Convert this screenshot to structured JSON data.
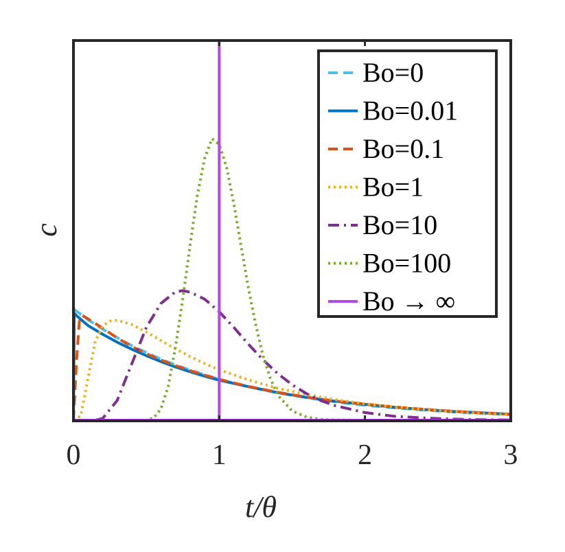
{
  "chart_data": {
    "type": "line",
    "xlabel": "t/θ",
    "ylabel": "c",
    "xlim": [
      0,
      3
    ],
    "ylim": [
      0,
      1
    ],
    "x_ticks": [
      "0",
      "1",
      "2",
      "3"
    ],
    "grid": false,
    "legend_position": "top-right",
    "series": [
      {
        "name": "Bo=0",
        "color": "#4DBEEE",
        "dash": "dashed",
        "x": [
          0,
          0.1,
          0.2,
          0.3,
          0.4,
          0.5,
          0.6,
          0.7,
          0.8,
          0.9,
          1.0,
          1.2,
          1.4,
          1.6,
          1.8,
          2.0,
          2.2,
          2.4,
          2.6,
          2.8,
          3.0
        ],
        "y": [
          0.395,
          0.357,
          0.324,
          0.293,
          0.265,
          0.24,
          0.217,
          0.196,
          0.178,
          0.161,
          0.145,
          0.119,
          0.097,
          0.08,
          0.065,
          0.053,
          0.044,
          0.036,
          0.029,
          0.024,
          0.02
        ]
      },
      {
        "name": "Bo=0.01",
        "color": "#0072BD",
        "dash": "solid",
        "x": [
          0,
          0.005,
          0.02,
          0.1,
          0.2,
          0.3,
          0.4,
          0.5,
          0.6,
          0.7,
          0.8,
          0.9,
          1.0,
          1.2,
          1.4,
          1.6,
          1.8,
          2.0,
          2.2,
          2.4,
          2.6,
          2.8,
          3.0
        ],
        "y": [
          0,
          0.38,
          0.372,
          0.336,
          0.305,
          0.277,
          0.252,
          0.229,
          0.208,
          0.189,
          0.172,
          0.156,
          0.142,
          0.119,
          0.098,
          0.081,
          0.067,
          0.056,
          0.046,
          0.038,
          0.031,
          0.026,
          0.021
        ]
      },
      {
        "name": "Bo=0.1",
        "color": "#D95319",
        "dash": "dashed",
        "x": [
          0,
          0.02,
          0.04,
          0.06,
          0.1,
          0.2,
          0.3,
          0.4,
          0.5,
          0.6,
          0.7,
          0.8,
          0.9,
          1.0,
          1.2,
          1.4,
          1.6,
          1.8,
          2.0,
          2.2,
          2.4,
          2.6,
          2.8,
          3.0
        ],
        "y": [
          0,
          0.2,
          0.35,
          0.372,
          0.36,
          0.327,
          0.292,
          0.262,
          0.236,
          0.214,
          0.194,
          0.176,
          0.16,
          0.145,
          0.12,
          0.099,
          0.082,
          0.068,
          0.057,
          0.047,
          0.039,
          0.032,
          0.026,
          0.021
        ]
      },
      {
        "name": "Bo=1",
        "color": "#EDB120",
        "dash": "dotted",
        "x": [
          0,
          0.05,
          0.1,
          0.15,
          0.2,
          0.25,
          0.3,
          0.4,
          0.5,
          0.6,
          0.7,
          0.8,
          0.9,
          1.0,
          1.2,
          1.4,
          1.6,
          1.8,
          2.0,
          2.2,
          2.4,
          2.6,
          2.8,
          3.0
        ],
        "y": [
          0,
          0.015,
          0.15,
          0.28,
          0.335,
          0.352,
          0.355,
          0.34,
          0.313,
          0.283,
          0.253,
          0.226,
          0.201,
          0.179,
          0.143,
          0.114,
          0.091,
          0.073,
          0.058,
          0.047,
          0.038,
          0.03,
          0.024,
          0.019
        ]
      },
      {
        "name": "Bo=10",
        "color": "#7E2F8E",
        "dash": "dashdot",
        "x": [
          0,
          0.15,
          0.2,
          0.3,
          0.4,
          0.5,
          0.6,
          0.7,
          0.75,
          0.8,
          0.9,
          1.0,
          1.1,
          1.2,
          1.3,
          1.4,
          1.5,
          1.6,
          1.7,
          1.8,
          2.0,
          2.2,
          2.4,
          2.6,
          2.8,
          3.0
        ],
        "y": [
          0,
          0.0,
          0.006,
          0.07,
          0.2,
          0.33,
          0.415,
          0.456,
          0.46,
          0.455,
          0.43,
          0.385,
          0.33,
          0.27,
          0.215,
          0.166,
          0.126,
          0.094,
          0.069,
          0.051,
          0.027,
          0.014,
          0.008,
          0.004,
          0.002,
          0.001
        ]
      },
      {
        "name": "Bo=100",
        "color": "#77AC30",
        "dash": "dotted",
        "x": [
          0,
          0.5,
          0.55,
          0.6,
          0.65,
          0.7,
          0.75,
          0.8,
          0.85,
          0.9,
          0.95,
          1.0,
          1.05,
          1.1,
          1.15,
          1.2,
          1.25,
          1.3,
          1.35,
          1.4,
          1.5,
          1.6,
          1.7,
          1.8,
          2.0,
          3.0
        ],
        "y": [
          0,
          0.0,
          0.008,
          0.04,
          0.12,
          0.26,
          0.43,
          0.62,
          0.8,
          0.93,
          1.0,
          0.98,
          0.9,
          0.77,
          0.62,
          0.47,
          0.34,
          0.23,
          0.15,
          0.09,
          0.033,
          0.011,
          0.003,
          0.001,
          0.0,
          0.0
        ]
      },
      {
        "name": "Bo → ∞",
        "color": "#B547E6",
        "dash": "solid",
        "x": [
          0,
          1,
          1,
          1,
          3
        ],
        "y": [
          0,
          0,
          1.34,
          0,
          0
        ]
      }
    ]
  }
}
